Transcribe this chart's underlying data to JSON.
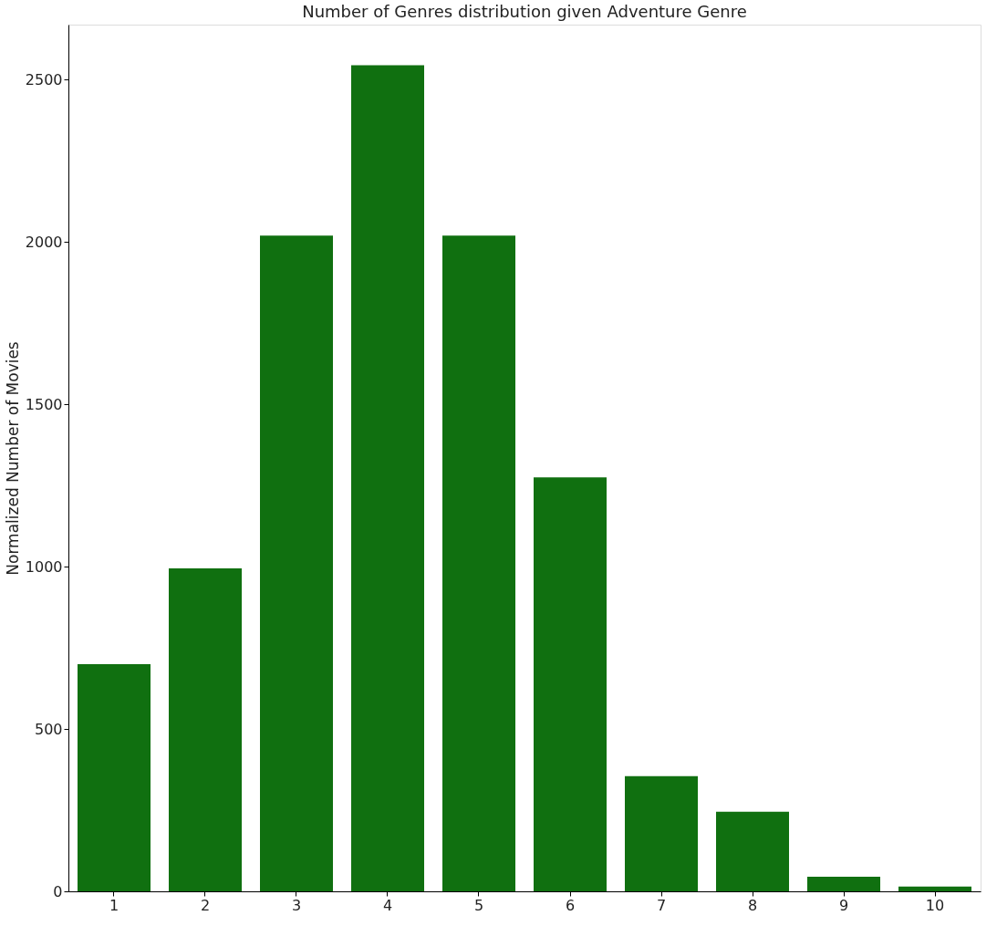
{
  "chart_data": {
    "type": "bar",
    "title": "Number of Genres distribution given Adventure Genre",
    "ylabel": "Normalized Number of Movies",
    "categories": [
      "1",
      "2",
      "3",
      "4",
      "5",
      "6",
      "7",
      "8",
      "9",
      "10"
    ],
    "values": [
      700,
      995,
      2020,
      2545,
      2020,
      1275,
      355,
      245,
      45,
      15
    ],
    "color": "#107010",
    "ylim": [
      0,
      2670
    ],
    "yticks": [
      0,
      500,
      1000,
      1500,
      2000,
      2500
    ],
    "grid": false
  }
}
